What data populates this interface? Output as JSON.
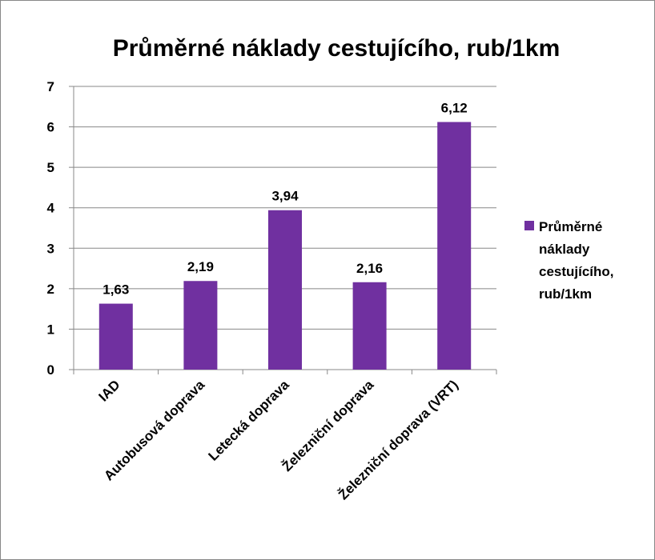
{
  "chart_data": {
    "type": "bar",
    "title": "Průměrné náklady cestujícího, rub/1km",
    "categories": [
      "IAD",
      "Autobusová doprava",
      "Letecká doprava",
      "Železniční doprava",
      "Železniční doprava (VRT)"
    ],
    "series": [
      {
        "name": "Průměrné náklady cestujícího, rub/1km",
        "color": "#7030a0",
        "values": [
          1.63,
          2.19,
          3.94,
          2.16,
          6.12
        ],
        "value_labels": [
          "1,63",
          "2,19",
          "3,94",
          "2,16",
          "6,12"
        ]
      }
    ],
    "ylim": [
      0,
      7
    ],
    "yticks": [
      0,
      1,
      2,
      3,
      4,
      5,
      6,
      7
    ],
    "grid": true,
    "legend": "right"
  }
}
